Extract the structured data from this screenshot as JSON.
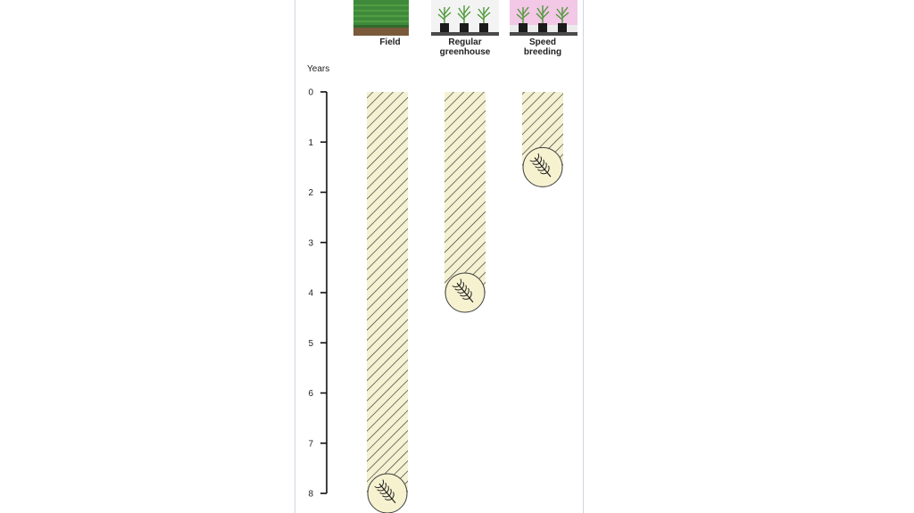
{
  "chart_data": {
    "type": "bar",
    "ylabel": "Years",
    "ylim": [
      0,
      8
    ],
    "y_ticks": [
      "0",
      "1",
      "2",
      "3",
      "4",
      "5",
      "6",
      "7",
      "8"
    ],
    "categories": [
      "Field",
      "Regular\ngreenhouse",
      "Speed\nbreeding"
    ],
    "values": [
      8,
      4,
      1.5
    ],
    "grid": false,
    "legend": "none"
  },
  "colors": {
    "bar_fill": "#f4f2d2",
    "hatch": "#333333",
    "circle_fill": "#f6f2d0",
    "field_green": "#3f8a3a",
    "soil": "#7a5a3a",
    "greenhouse_bg": "#f3f3f3",
    "speed_bg": "#f3c7e6"
  },
  "icons": [
    "field-thumbnail",
    "greenhouse-thumbnail",
    "speed-breeding-thumbnail",
    "wheat-ear-icon"
  ]
}
